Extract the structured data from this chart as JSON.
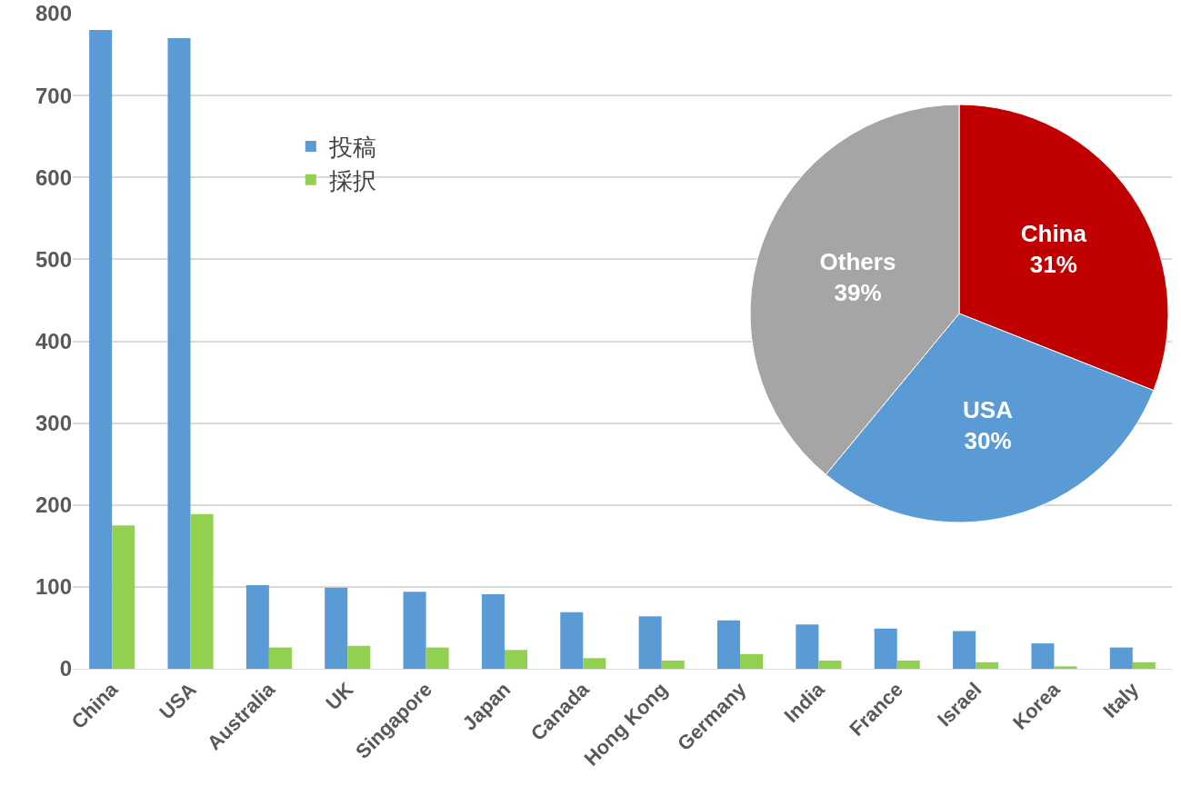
{
  "chart_data": [
    {
      "type": "bar",
      "categories": [
        "China",
        "USA",
        "Australia",
        "UK",
        "Singapore",
        "Japan",
        "Canada",
        "Hong Kong",
        "Germany",
        "India",
        "France",
        "Israel",
        "Korea",
        "Italy"
      ],
      "series": [
        {
          "name": "投稿",
          "color": "#5b9bd5",
          "values": [
            780,
            770,
            102,
            99,
            94,
            91,
            69,
            64,
            59,
            54,
            49,
            46,
            31,
            26
          ]
        },
        {
          "name": "採択",
          "color": "#92d050",
          "values": [
            175,
            189,
            26,
            28,
            26,
            23,
            13,
            10,
            18,
            10,
            10,
            8,
            3,
            8
          ]
        }
      ],
      "ylim": [
        0,
        800
      ],
      "yticks": [
        0,
        100,
        200,
        300,
        400,
        500,
        600,
        700,
        800
      ],
      "grid": "y",
      "legend": "top left"
    },
    {
      "type": "pie",
      "categories": [
        "China",
        "USA",
        "Others"
      ],
      "values": [
        31,
        30,
        39
      ],
      "value_labels": [
        "31%",
        "30%",
        "39%"
      ],
      "colors": [
        "#c00000",
        "#5b9bd5",
        "#a5a5a5"
      ]
    }
  ]
}
